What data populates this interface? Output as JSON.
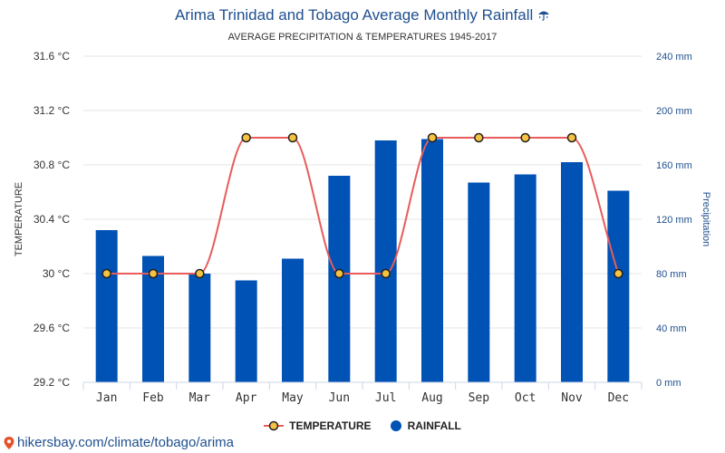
{
  "header": {
    "title": "Arima Trinidad and Tobago Average Monthly Rainfall",
    "title_icon": "umbrella-rain-icon",
    "subtitle": "AVERAGE PRECIPITATION & TEMPERATURES 1945-2017"
  },
  "legend": {
    "temperature": "TEMPERATURE",
    "rainfall": "RAINFALL"
  },
  "footer": {
    "url": "hikersbay.com/climate/tobago/arima",
    "icon": "map-pin-icon"
  },
  "colors": {
    "bar": "#0052b4",
    "line": "#e85c5c",
    "marker_fill": "#f5c242",
    "marker_stroke": "#222222",
    "title": "#1f4f8f",
    "right_axis": "#1f4f8f"
  },
  "chart_data": {
    "type": "bar",
    "categories": [
      "Jan",
      "Feb",
      "Mar",
      "Apr",
      "May",
      "Jun",
      "Jul",
      "Aug",
      "Sep",
      "Oct",
      "Nov",
      "Dec"
    ],
    "series": [
      {
        "name": "RAINFALL",
        "type": "bar",
        "axis": "right",
        "unit": "mm",
        "values": [
          112,
          93,
          80,
          75,
          91,
          152,
          178,
          179,
          147,
          153,
          162,
          141
        ]
      },
      {
        "name": "TEMPERATURE",
        "type": "line",
        "axis": "left",
        "unit": "°C",
        "values": [
          30,
          30,
          30,
          31,
          31,
          30,
          30,
          31,
          31,
          31,
          31,
          30
        ]
      }
    ],
    "ylabel_left": "TEMPERATURE",
    "ylabel_right": "Precipitation",
    "left_axis": {
      "ylim": [
        29.2,
        31.6
      ],
      "ticks": [
        "29.2 °C",
        "29.6 °C",
        "30 °C",
        "30.4 °C",
        "30.8 °C",
        "31.2 °C",
        "31.6 °C"
      ]
    },
    "right_axis": {
      "ylim": [
        0,
        240
      ],
      "ticks": [
        "0 mm",
        "40 mm",
        "80 mm",
        "120 mm",
        "160 mm",
        "200 mm",
        "240 mm"
      ]
    },
    "grid": true,
    "legend_position": "bottom"
  }
}
